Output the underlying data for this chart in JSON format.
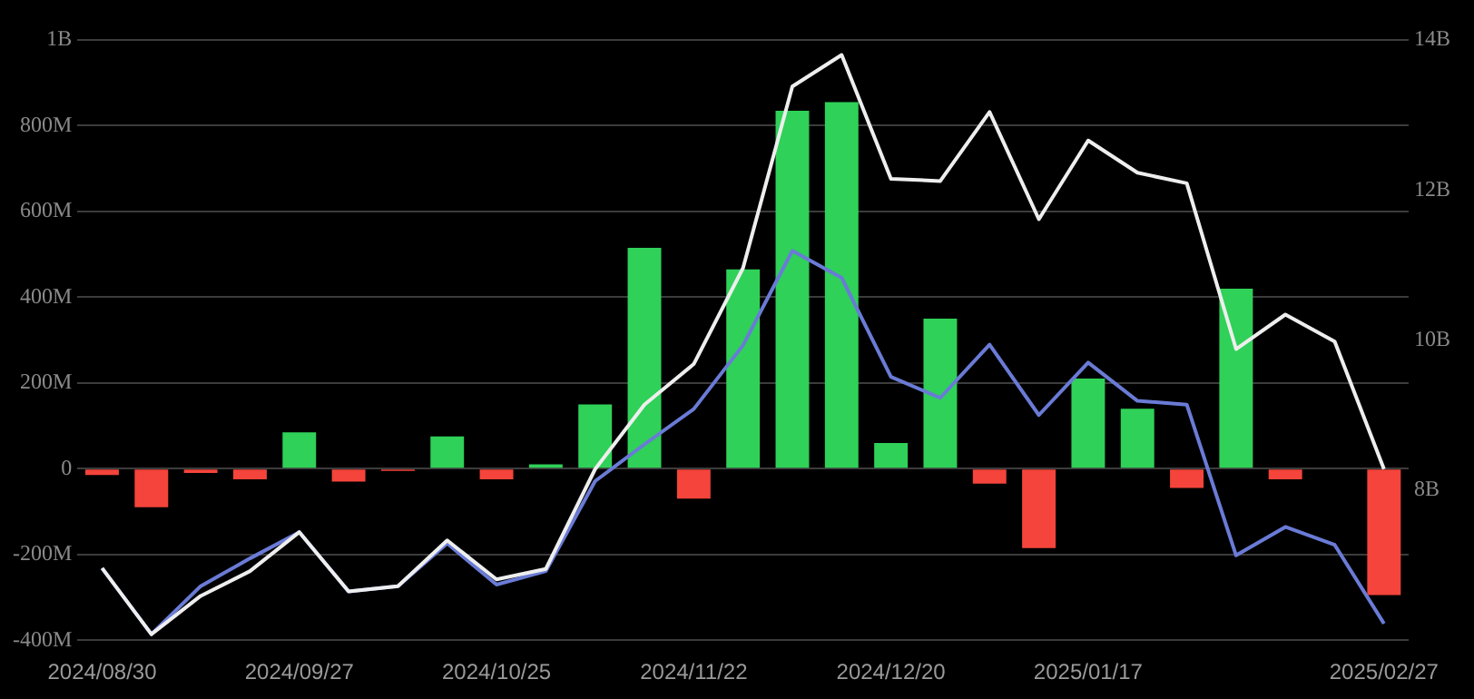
{
  "chart_data": {
    "type": "bar",
    "categories": [
      "2024/08/30",
      null,
      null,
      null,
      "2024/09/27",
      null,
      null,
      null,
      "2024/10/25",
      null,
      null,
      null,
      "2024/11/22",
      null,
      null,
      null,
      "2024/12/20",
      null,
      null,
      null,
      "2025/01/17",
      null,
      null,
      null,
      null,
      null,
      "2025/02/27"
    ],
    "series": [
      {
        "colors": [
          "#f5443b",
          "#f5443b",
          "#f5443b",
          "#f5443b",
          "#2fd158",
          "#f5443b",
          "#f5443b",
          "#2fd158",
          "#f5443b",
          "#2fd158",
          "#2fd158",
          "#2fd158",
          "#f5443b",
          "#2fd158",
          "#2fd158",
          "#2fd158",
          "#2fd158",
          "#2fd158",
          "#f5443b",
          "#f5443b",
          "#2fd158",
          "#2fd158",
          "#f5443b",
          "#2fd158",
          "#f5443b",
          "#2fd158",
          "#f5443b"
        ],
        "values": [
          -15000000,
          -90000000,
          -10000000,
          -25000000,
          85000000,
          -30000000,
          -5000000,
          75000000,
          -25000000,
          10000000,
          150000000,
          515000000,
          -70000000,
          465000000,
          835000000,
          855000000,
          60000000,
          350000000,
          -35000000,
          -185000000,
          210000000,
          140000000,
          -45000000,
          420000000,
          -25000000,
          0,
          -295000000
        ]
      },
      {
        "type": "line",
        "axis": "y2",
        "color": "#eeeeee",
        "values": [
          6960000000,
          6080000000,
          6590000000,
          6920000000,
          7440000000,
          6650000000,
          6720000000,
          7330000000,
          6810000000,
          6950000000,
          8280000000,
          9140000000,
          9680000000,
          10960000000,
          13380000000,
          13800000000,
          12150000000,
          12120000000,
          13040000000,
          11610000000,
          12660000000,
          12230000000,
          12090000000,
          9880000000,
          10340000000,
          9980000000,
          8280000000
        ]
      },
      {
        "type": "line",
        "axis": "y2",
        "color": "#6a7bd6",
        "values": [
          6960000000,
          6080000000,
          6720000000,
          7090000000,
          7440000000,
          6650000000,
          6720000000,
          7290000000,
          6740000000,
          6920000000,
          8120000000,
          8610000000,
          9080000000,
          9930000000,
          11190000000,
          10830000000,
          9510000000,
          9230000000,
          9940000000,
          9000000000,
          9700000000,
          9190000000,
          9140000000,
          7130000000,
          7510000000,
          7270000000,
          6220000000
        ]
      }
    ],
    "ylim": [
      -400000000,
      1000000000
    ],
    "yticks": [
      {
        "value": -400000000,
        "label": "-400M"
      },
      {
        "value": -200000000,
        "label": "-200M"
      },
      0,
      {
        "value": 200000000,
        "label": "200M"
      },
      {
        "value": 400000000,
        "label": "400M"
      },
      {
        "value": 600000000,
        "label": "600M"
      },
      {
        "value": 800000000,
        "label": "800M"
      },
      {
        "value": 1000000000,
        "label": "1B"
      }
    ],
    "y2lim": [
      6000000000,
      14000000000
    ],
    "y2ticks": [
      {
        "value": 8000000000,
        "label": "8B"
      },
      {
        "value": 10000000000,
        "label": "10B"
      },
      {
        "value": 12000000000,
        "label": "12B"
      },
      {
        "value": 14000000000,
        "label": "14B"
      }
    ],
    "grid": "y",
    "legend": false,
    "marker": "none",
    "line_style": "solid"
  }
}
